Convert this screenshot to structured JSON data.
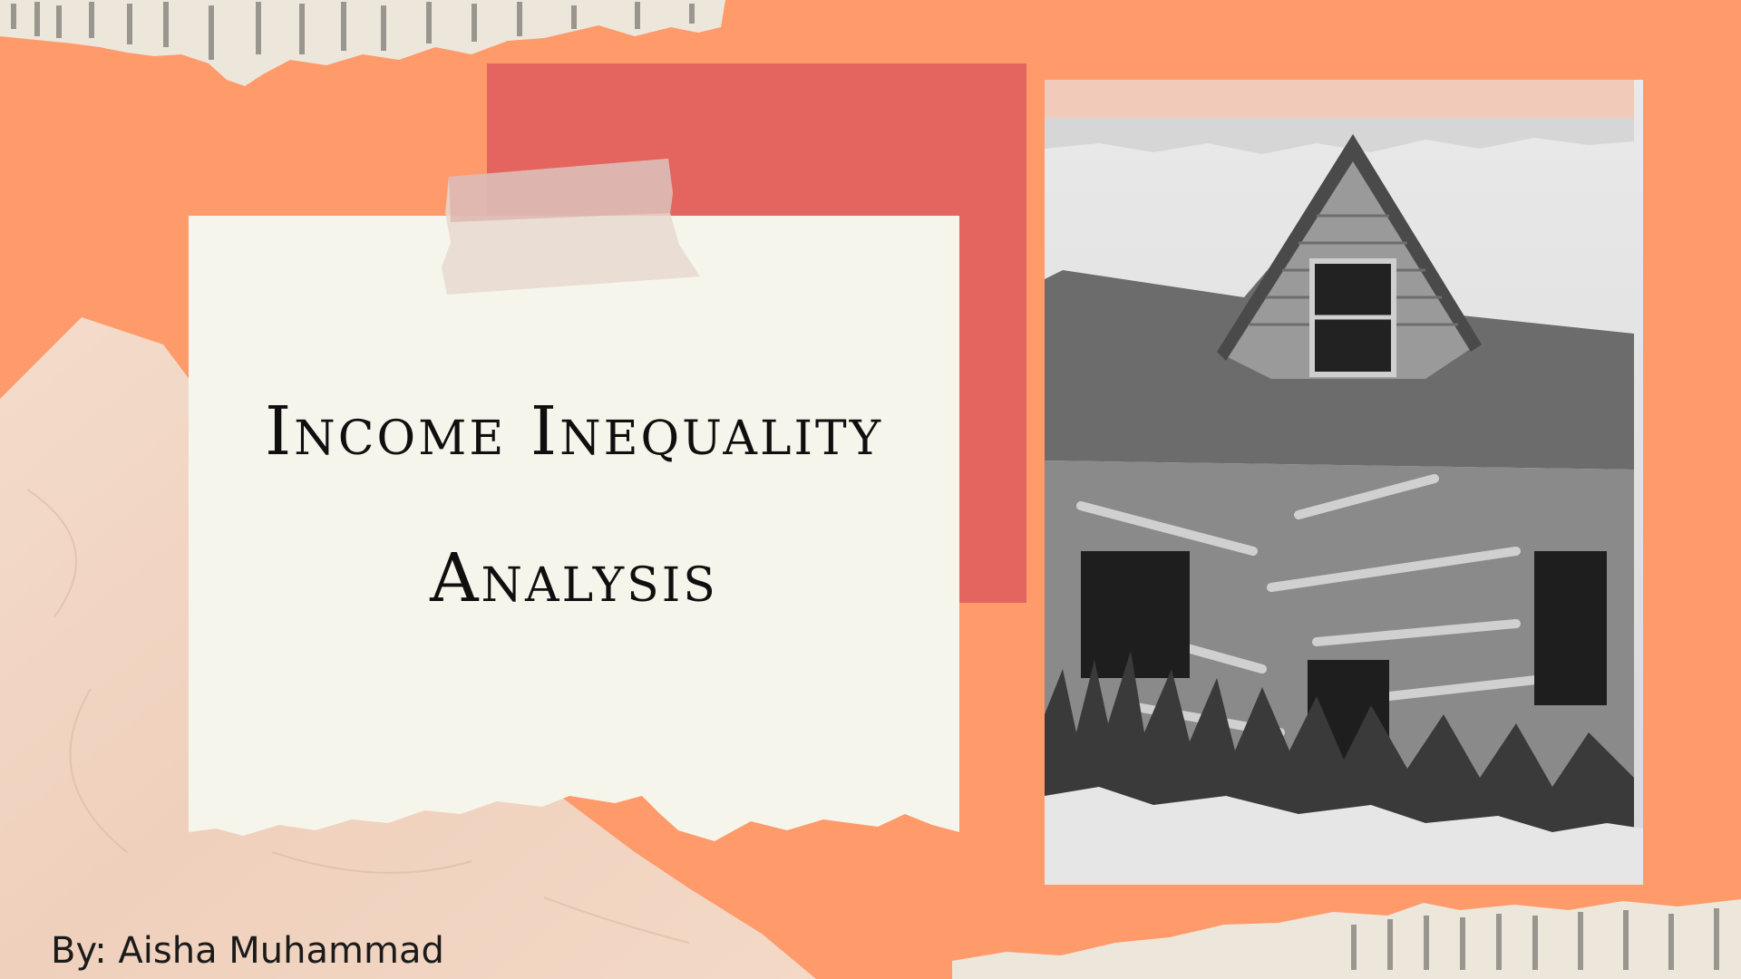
{
  "slide": {
    "title_line1": "Income Inequality",
    "title_line2": "Analysis",
    "author": "By: Aisha Muhammad"
  },
  "colors": {
    "background": "#FF9A6B",
    "accent_square": "#E4655F",
    "paper": "#F6F5EC",
    "fabric": "#F2D5C2"
  },
  "images": {
    "photo": "abandoned-collapsing-house-photo"
  }
}
